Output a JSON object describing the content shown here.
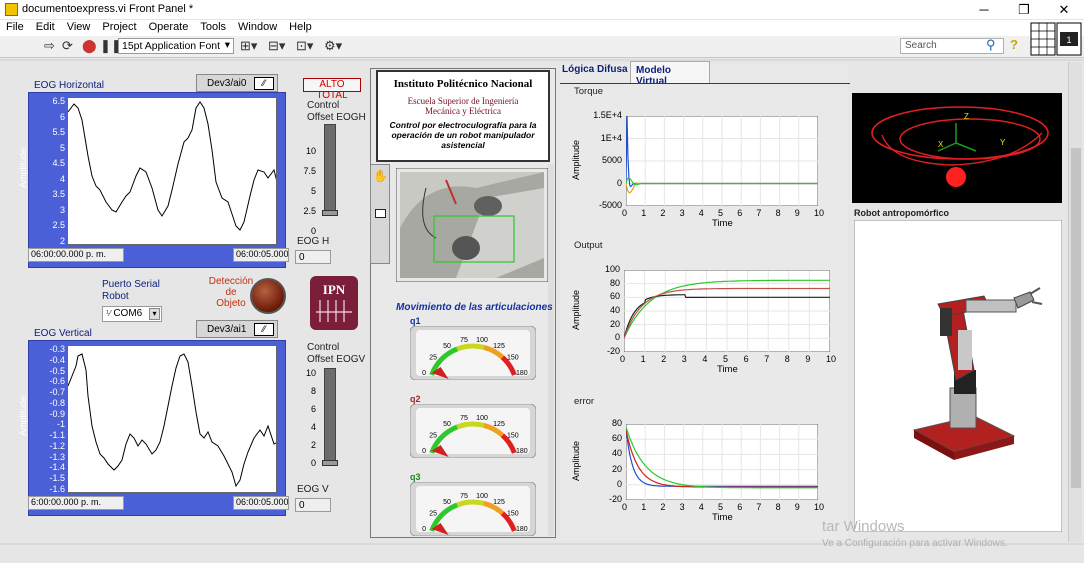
{
  "window": {
    "title": "documentoexpress.vi Front Panel *",
    "controls": [
      "─",
      "❐",
      "✕"
    ]
  },
  "menu": [
    "File",
    "Edit",
    "View",
    "Project",
    "Operate",
    "Tools",
    "Window",
    "Help"
  ],
  "toolbar": {
    "font": "15pt Application Font",
    "search_placeholder": "Search"
  },
  "eog_h": {
    "label": "EOG Horizontal",
    "channel": "Dev3/ai0",
    "y_ticks": [
      "6.5",
      "6",
      "5.5",
      "5",
      "4.5",
      "4",
      "3.5",
      "3",
      "2.5",
      "2"
    ],
    "y_label": "Amplitude",
    "x_start": "06:00:00.000 p. m.",
    "x_end": "06:00:05.000 p"
  },
  "eog_v": {
    "label": "EOG Vertical",
    "channel": "Dev3/ai1",
    "y_ticks": [
      "-0.3",
      "-0.4",
      "-0.5",
      "-0.6",
      "-0.7",
      "-0.8",
      "-0.9",
      "-1",
      "-1.1",
      "-1.2",
      "-1.3",
      "-1.4",
      "-1.5",
      "-1.6"
    ],
    "y_label": "Amplitude",
    "x_start": "6:00:00.000 p. m.",
    "x_end": "06:00:05.000 p"
  },
  "alto_total": "ALTO TOTAL",
  "offset_h": {
    "label1": "Control",
    "label2": "Offset EOGH",
    "ticks": [
      "10",
      "7.5",
      "5",
      "2.5",
      "0"
    ],
    "readout_label": "EOG H",
    "readout": "0"
  },
  "offset_v": {
    "label1": "Control",
    "label2": "Offset EOGV",
    "ticks": [
      "10",
      "8",
      "6",
      "4",
      "2",
      "0"
    ],
    "readout_label": "EOG V",
    "readout": "0"
  },
  "serial": {
    "label1": "Puerto Serial",
    "label2": "Robot",
    "value": "COM6"
  },
  "detection": {
    "label1": "Detección",
    "label2": "de",
    "label3": "Objeto"
  },
  "header_box": {
    "title": "Instituto Politécnico Nacional",
    "school1": "Escuela Superior de Ingeniería",
    "school2": "Mecánica y Eléctrica",
    "desc1": "Control por electroculografía para la",
    "desc2": "operación de un robot manipulador",
    "desc3": "asistencial"
  },
  "movement": {
    "title": "Movimiento de las articulaciones",
    "gauges": [
      {
        "name": "q1",
        "value": 5
      },
      {
        "name": "q2",
        "value": 5
      },
      {
        "name": "q3",
        "value": 5
      }
    ],
    "ticks": [
      "0",
      "25",
      "50",
      "75",
      "100",
      "125",
      "150",
      "180"
    ]
  },
  "tabs": [
    "Lógica Difusa",
    "Modelo Virtual"
  ],
  "charts": {
    "torque": {
      "title": "Torque",
      "y_ticks": [
        "1.5E+4",
        "1E+4",
        "5000",
        "0",
        "-5000"
      ],
      "x_ticks": [
        "0",
        "1",
        "2",
        "3",
        "4",
        "5",
        "6",
        "7",
        "8",
        "9",
        "10"
      ],
      "xlabel": "Time",
      "ylabel": "Amplitude"
    },
    "output": {
      "title": "Output",
      "y_ticks": [
        "100",
        "80",
        "60",
        "40",
        "20",
        "0",
        "-20"
      ],
      "x_ticks": [
        "0",
        "1",
        "2",
        "3",
        "4",
        "5",
        "6",
        "7",
        "8",
        "9",
        "10"
      ],
      "xlabel": "Time",
      "ylabel": "Amplitude"
    },
    "error": {
      "title": "error",
      "y_ticks": [
        "80",
        "60",
        "40",
        "20",
        "0",
        "-20"
      ],
      "x_ticks": [
        "0",
        "1",
        "2",
        "3",
        "4",
        "5",
        "6",
        "7",
        "8",
        "9",
        "10"
      ],
      "xlabel": "Time",
      "ylabel": "Amplitude"
    }
  },
  "robot_view": {
    "axis_labels": [
      "Z",
      "X",
      "Y"
    ],
    "label": "Robot antropomórfico"
  },
  "watermark": {
    "line1": "tar Windows",
    "line2": "Ve a Configuración para activar Windows."
  },
  "colors": {
    "graph_bg": "#4b5fd6",
    "green": "#2ec82e",
    "red": "#d02020",
    "blue": "#1f4fd0",
    "dark": "#333333"
  }
}
